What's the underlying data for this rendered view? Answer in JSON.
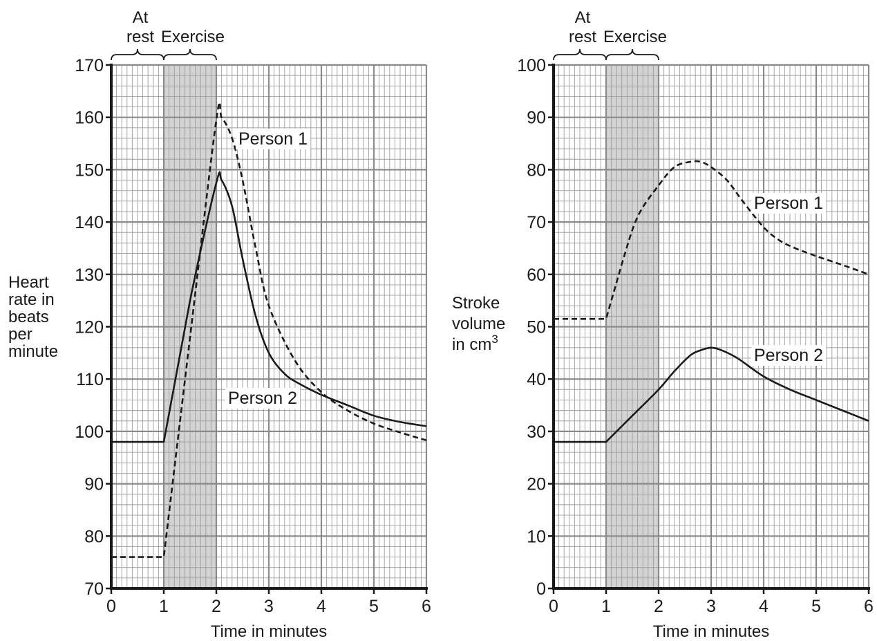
{
  "chart_data": [
    {
      "type": "line",
      "ylabel_lines": [
        "Heart",
        "rate in",
        "beats",
        "per",
        "minute"
      ],
      "xlabel": "Time in minutes",
      "period_labels": {
        "rest_line1": "At",
        "rest_line2": "rest",
        "exercise": "Exercise"
      },
      "xlim": [
        0,
        6
      ],
      "ylim": [
        70,
        170
      ],
      "x_ticks": [
        "0",
        "1",
        "2",
        "3",
        "4",
        "5",
        "6"
      ],
      "y_ticks": [
        "70",
        "80",
        "90",
        "100",
        "110",
        "120",
        "130",
        "140",
        "150",
        "160",
        "170"
      ],
      "grid": true,
      "exercise_period": [
        1,
        2
      ],
      "series": [
        {
          "name": "Person 1",
          "style": "dashed",
          "x": [
            0,
            1,
            1.5,
            2,
            2.1,
            2.3,
            2.5,
            2.75,
            3,
            3.5,
            4,
            4.5,
            5,
            5.5,
            6
          ],
          "y": [
            76,
            76,
            118,
            159.5,
            160,
            156,
            148,
            135,
            124,
            113.5,
            107.5,
            104,
            101.5,
            99.8,
            98.3
          ]
        },
        {
          "name": "Person 2",
          "style": "solid",
          "x": [
            0,
            1,
            1.5,
            2,
            2.1,
            2.3,
            2.5,
            2.75,
            3,
            3.3,
            3.6,
            4,
            4.5,
            5,
            5.5,
            6
          ],
          "y": [
            98,
            98,
            125,
            147.5,
            148,
            143,
            133,
            122,
            115,
            111,
            109,
            107,
            105,
            103,
            101.8,
            101
          ]
        }
      ]
    },
    {
      "type": "line",
      "ylabel_lines": [
        "Stroke",
        "volume",
        "in cm"
      ],
      "ylabel_sup": "3",
      "xlabel": "Time in minutes",
      "period_labels": {
        "rest_line1": "At",
        "rest_line2": "rest",
        "exercise": "Exercise"
      },
      "xlim": [
        0,
        6
      ],
      "ylim": [
        0,
        100
      ],
      "x_ticks": [
        "0",
        "1",
        "2",
        "3",
        "4",
        "5",
        "6"
      ],
      "y_ticks": [
        "0",
        "10",
        "20",
        "30",
        "40",
        "50",
        "60",
        "70",
        "80",
        "90",
        "100"
      ],
      "grid": true,
      "exercise_period": [
        1,
        2
      ],
      "series": [
        {
          "name": "Person 1",
          "style": "dashed",
          "x": [
            0,
            1,
            1.3,
            1.6,
            2,
            2.3,
            2.6,
            2.8,
            3,
            3.3,
            3.6,
            4,
            4.3,
            4.6,
            5,
            5.5,
            6
          ],
          "y": [
            51.5,
            51.5,
            62,
            71,
            77,
            80.5,
            81.5,
            81.5,
            80.5,
            78,
            74,
            69,
            66.5,
            65,
            63.5,
            61.8,
            60
          ]
        },
        {
          "name": "Person 2",
          "style": "solid",
          "x": [
            0,
            1,
            1.5,
            2,
            2.3,
            2.6,
            2.8,
            3,
            3.2,
            3.5,
            4,
            4.5,
            5,
            5.5,
            6
          ],
          "y": [
            28,
            28,
            33,
            38,
            41.5,
            44.5,
            45.5,
            46,
            45.5,
            44,
            40.5,
            38,
            36,
            34,
            32
          ]
        }
      ]
    }
  ]
}
